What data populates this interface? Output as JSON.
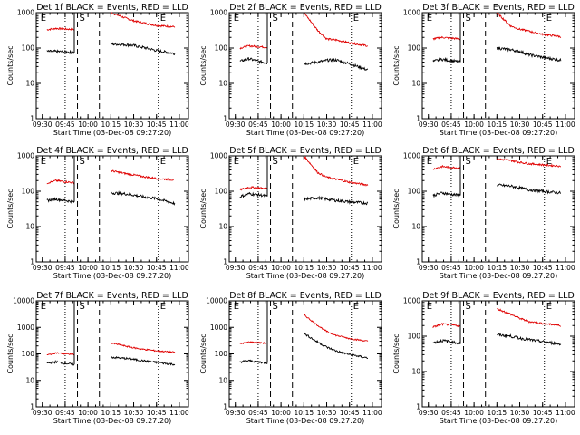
{
  "chart_data": {
    "type": "line",
    "panels": [
      {
        "title": "Det 1f BLACK = Events, RED = LLD",
        "events": [
          80,
          80,
          78,
          75,
          130,
          125,
          118,
          105,
          85,
          70
        ],
        "lld": [
          330,
          360,
          345,
          335,
          1000,
          720,
          590,
          515,
          435,
          400
        ]
      },
      {
        "title": "Det 2f BLACK = Events, RED = LLD",
        "events": [
          42,
          50,
          42,
          38,
          36,
          40,
          45,
          46,
          36,
          24
        ],
        "lld": [
          100,
          115,
          110,
          105,
          1000,
          320,
          180,
          170,
          140,
          115
        ]
      },
      {
        "title": "Det 3f BLACK = Events, RED = LLD",
        "events": [
          42,
          48,
          44,
          40,
          100,
          90,
          80,
          65,
          55,
          45
        ],
        "lld": [
          180,
          200,
          190,
          180,
          1000,
          420,
          340,
          300,
          245,
          210
        ]
      },
      {
        "title": "Det 4f BLACK = Events, RED = LLD",
        "events": [
          55,
          60,
          55,
          50,
          90,
          85,
          78,
          70,
          62,
          45
        ],
        "lld": [
          170,
          200,
          185,
          175,
          380,
          320,
          290,
          260,
          230,
          210
        ]
      },
      {
        "title": "Det 5f BLACK = Events, RED = LLD",
        "events": [
          70,
          85,
          80,
          72,
          60,
          65,
          60,
          55,
          50,
          46
        ],
        "lld": [
          110,
          130,
          125,
          118,
          1000,
          340,
          250,
          220,
          180,
          150
        ]
      },
      {
        "title": "Det 6f BLACK = Events, RED = LLD",
        "events": [
          75,
          90,
          82,
          76,
          150,
          140,
          125,
          110,
          100,
          90
        ],
        "lld": [
          420,
          500,
          470,
          455,
          820,
          740,
          660,
          600,
          560,
          510
        ]
      },
      {
        "title": "Det 7f BLACK = Events, RED = LLD",
        "events": [
          45,
          50,
          44,
          40,
          75,
          68,
          62,
          55,
          48,
          40
        ],
        "lld": [
          90,
          110,
          100,
          95,
          260,
          200,
          170,
          150,
          130,
          115
        ]
      },
      {
        "title": "Det 8f BLACK = Events, RED = LLD",
        "events": [
          50,
          55,
          50,
          45,
          600,
          280,
          180,
          130,
          95,
          70
        ],
        "lld": [
          240,
          280,
          265,
          250,
          3000,
          1200,
          700,
          500,
          380,
          300
        ]
      },
      {
        "title": "Det 9f BLACK = Events, RED = LLD",
        "events": [
          65,
          75,
          70,
          62,
          110,
          100,
          88,
          80,
          70,
          60
        ],
        "lld": [
          180,
          220,
          210,
          195,
          600,
          420,
          320,
          260,
          230,
          200
        ]
      }
    ],
    "x_hours": [
      9.55,
      9.65,
      9.75,
      9.85,
      10.25,
      10.4,
      10.5,
      10.6,
      10.75,
      10.95
    ],
    "x_ticks": [
      "09:30",
      "09:45",
      "10:00",
      "10:15",
      "10:30",
      "10:45",
      "11:00"
    ],
    "x_range": [
      "09:26",
      "11:06"
    ],
    "xlabel": "Start Time (03-Dec-08 09:27:20)",
    "ylabel": "Counts/sec",
    "y_scale": "log",
    "y_ticks_small": [
      "1",
      "10",
      "100",
      "1000"
    ],
    "y_ticks_large": [
      "1",
      "10",
      "100",
      "1000",
      "10000"
    ],
    "marker_labels": [
      "E",
      "S",
      "E"
    ],
    "series_colors": {
      "events": "#000000",
      "lld": "#e00000"
    }
  }
}
